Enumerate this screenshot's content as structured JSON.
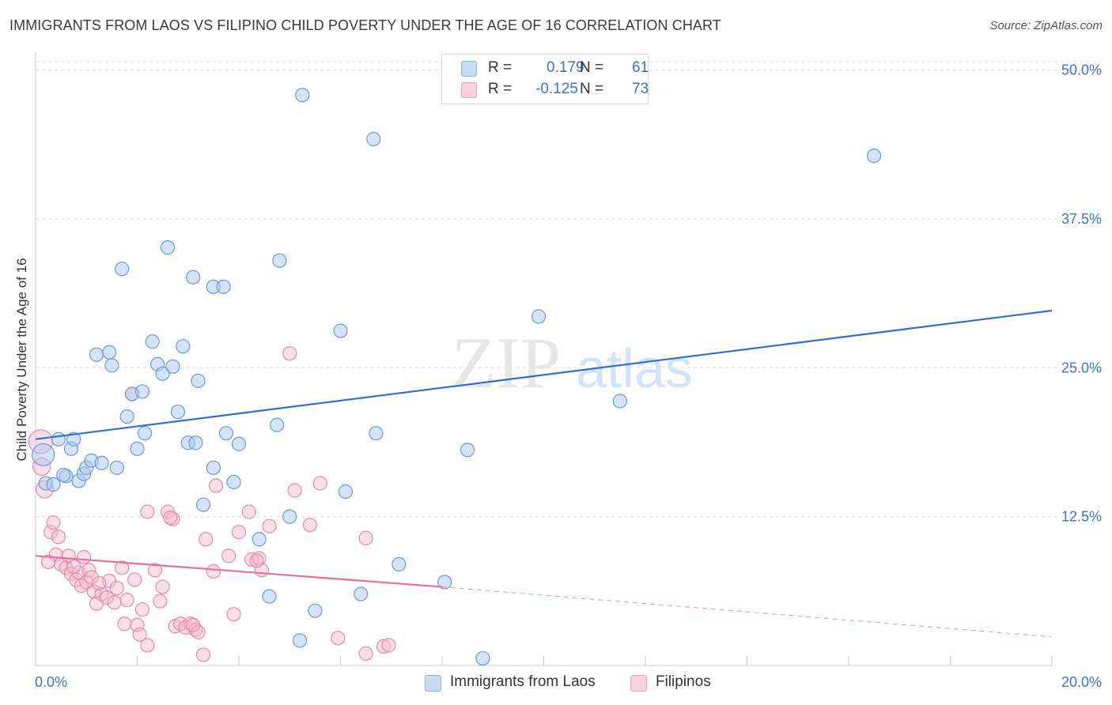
{
  "title": "IMMIGRANTS FROM LAOS VS FILIPINO CHILD POVERTY UNDER THE AGE OF 16 CORRELATION CHART",
  "source": "Source: ZipAtlas.com",
  "watermark": {
    "zip": "ZIP",
    "atlas": "atlas"
  },
  "legend_top": {
    "rows": [
      {
        "r_label": "R =",
        "r_value": "0.179",
        "n_label": "N =",
        "n_value": "61",
        "color": "#a9c8f0"
      },
      {
        "r_label": "R =",
        "r_value": "-0.125",
        "n_label": "N =",
        "n_value": "73",
        "color": "#f5b8cb"
      }
    ]
  },
  "colors": {
    "blue_fill": "#a9c8f0",
    "blue_stroke": "#6b9ad8",
    "blue_line": "#2f6fcf",
    "pink_fill": "#f5b8cb",
    "pink_stroke": "#e888a8",
    "pink_line": "#e8709a",
    "tick_label": "#3b73c9",
    "grid": "#dddddd"
  },
  "chart_data": {
    "type": "scatter",
    "title": "IMMIGRANTS FROM LAOS VS FILIPINO CHILD POVERTY UNDER THE AGE OF 16 CORRELATION CHART",
    "xlabel": "",
    "ylabel": "Child Poverty Under the Age of 16",
    "xlim": [
      0,
      20
    ],
    "ylim": [
      0,
      51.5
    ],
    "x_tick_labels": [
      "0.0%",
      "20.0%"
    ],
    "y_ticks": [
      12.5,
      25.0,
      37.5,
      50.0
    ],
    "y_tick_labels": [
      "12.5%",
      "25.0%",
      "37.5%",
      "50.0%"
    ],
    "grid": true,
    "legend_position": "bottom",
    "series": [
      {
        "name": "Immigrants from Laos",
        "color": "#a9c8f0",
        "trend": {
          "x": [
            0.0,
            20.0
          ],
          "y": [
            19.0,
            29.8
          ]
        },
        "points": [
          [
            0.15,
            17.7
          ],
          [
            0.2,
            15.3
          ],
          [
            0.35,
            15.2
          ],
          [
            0.45,
            19.0
          ],
          [
            0.6,
            15.9
          ],
          [
            0.7,
            18.2
          ],
          [
            0.75,
            19.0
          ],
          [
            0.85,
            15.5
          ],
          [
            0.95,
            16.1
          ],
          [
            1.0,
            16.6
          ],
          [
            1.1,
            17.2
          ],
          [
            1.3,
            17.0
          ],
          [
            1.6,
            16.6
          ],
          [
            1.2,
            26.1
          ],
          [
            1.45,
            26.3
          ],
          [
            1.5,
            25.2
          ],
          [
            1.7,
            33.3
          ],
          [
            1.8,
            20.9
          ],
          [
            1.9,
            22.8
          ],
          [
            2.0,
            18.2
          ],
          [
            2.1,
            23.0
          ],
          [
            2.15,
            19.5
          ],
          [
            2.3,
            27.2
          ],
          [
            2.4,
            25.3
          ],
          [
            2.5,
            24.5
          ],
          [
            2.6,
            35.1
          ],
          [
            2.7,
            25.1
          ],
          [
            2.8,
            21.3
          ],
          [
            2.9,
            26.8
          ],
          [
            3.0,
            18.7
          ],
          [
            3.1,
            32.6
          ],
          [
            3.15,
            18.7
          ],
          [
            3.2,
            23.9
          ],
          [
            3.3,
            13.5
          ],
          [
            3.5,
            31.8
          ],
          [
            3.5,
            16.6
          ],
          [
            3.7,
            31.8
          ],
          [
            3.75,
            19.5
          ],
          [
            3.9,
            15.4
          ],
          [
            4.0,
            18.6
          ],
          [
            4.4,
            10.6
          ],
          [
            4.6,
            5.8
          ],
          [
            4.75,
            20.2
          ],
          [
            4.8,
            34.0
          ],
          [
            5.0,
            12.5
          ],
          [
            5.2,
            2.1
          ],
          [
            5.25,
            47.9
          ],
          [
            5.5,
            4.6
          ],
          [
            6.0,
            28.1
          ],
          [
            6.1,
            14.6
          ],
          [
            6.4,
            6.0
          ],
          [
            6.65,
            44.2
          ],
          [
            6.7,
            19.5
          ],
          [
            7.15,
            8.5
          ],
          [
            8.05,
            7.0
          ],
          [
            8.5,
            18.1
          ],
          [
            8.8,
            0.6
          ],
          [
            9.9,
            29.3
          ],
          [
            11.5,
            22.2
          ],
          [
            16.5,
            42.8
          ],
          [
            0.55,
            16.0
          ]
        ]
      },
      {
        "name": "Filipinos",
        "color": "#f5b8cb",
        "trend": {
          "x": [
            0.0,
            8.0
          ],
          "y": [
            9.2,
            6.6
          ]
        },
        "trend_dashed": {
          "x": [
            8.0,
            20.0
          ],
          "y": [
            6.6,
            2.4
          ]
        },
        "points": [
          [
            0.1,
            18.8
          ],
          [
            0.12,
            16.7
          ],
          [
            0.18,
            14.8
          ],
          [
            0.3,
            11.2
          ],
          [
            0.35,
            12.0
          ],
          [
            0.45,
            10.8
          ],
          [
            0.4,
            9.3
          ],
          [
            0.5,
            8.5
          ],
          [
            0.6,
            8.2
          ],
          [
            0.65,
            9.2
          ],
          [
            0.7,
            7.7
          ],
          [
            0.8,
            7.2
          ],
          [
            0.85,
            7.8
          ],
          [
            0.9,
            6.7
          ],
          [
            0.95,
            9.1
          ],
          [
            1.0,
            7.0
          ],
          [
            1.05,
            8.0
          ],
          [
            1.1,
            7.4
          ],
          [
            1.15,
            6.2
          ],
          [
            1.2,
            5.2
          ],
          [
            1.3,
            6.0
          ],
          [
            1.4,
            5.7
          ],
          [
            1.45,
            7.1
          ],
          [
            1.55,
            5.3
          ],
          [
            1.6,
            6.5
          ],
          [
            1.7,
            8.2
          ],
          [
            1.75,
            3.5
          ],
          [
            1.8,
            5.5
          ],
          [
            1.9,
            22.8
          ],
          [
            1.95,
            7.2
          ],
          [
            2.0,
            3.4
          ],
          [
            2.05,
            2.6
          ],
          [
            2.1,
            4.7
          ],
          [
            2.2,
            1.7
          ],
          [
            2.2,
            12.9
          ],
          [
            2.35,
            8.0
          ],
          [
            2.45,
            5.4
          ],
          [
            2.5,
            6.6
          ],
          [
            2.6,
            12.9
          ],
          [
            2.7,
            12.3
          ],
          [
            2.75,
            3.3
          ],
          [
            2.85,
            3.5
          ],
          [
            2.95,
            3.2
          ],
          [
            3.05,
            3.5
          ],
          [
            3.15,
            3.0
          ],
          [
            3.2,
            2.8
          ],
          [
            3.3,
            0.9
          ],
          [
            3.35,
            10.6
          ],
          [
            3.5,
            7.9
          ],
          [
            3.55,
            15.1
          ],
          [
            3.8,
            9.2
          ],
          [
            3.9,
            4.3
          ],
          [
            4.0,
            11.2
          ],
          [
            4.2,
            12.9
          ],
          [
            4.25,
            8.9
          ],
          [
            4.4,
            9.0
          ],
          [
            4.45,
            8.0
          ],
          [
            4.6,
            11.7
          ],
          [
            5.0,
            26.2
          ],
          [
            5.1,
            14.7
          ],
          [
            5.4,
            11.8
          ],
          [
            5.6,
            15.3
          ],
          [
            5.95,
            2.3
          ],
          [
            6.5,
            10.7
          ],
          [
            6.5,
            1.0
          ],
          [
            6.85,
            1.6
          ],
          [
            6.95,
            1.7
          ],
          [
            0.25,
            8.7
          ],
          [
            2.65,
            12.4
          ],
          [
            3.1,
            3.4
          ],
          [
            1.25,
            6.9
          ],
          [
            0.75,
            8.3
          ],
          [
            4.35,
            8.8
          ]
        ]
      }
    ]
  }
}
